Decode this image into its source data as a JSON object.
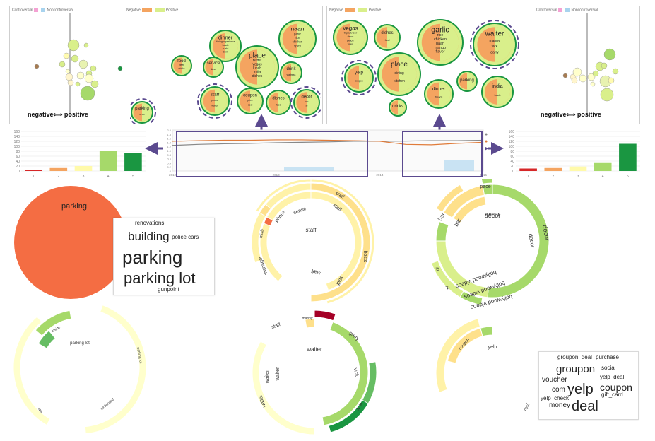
{
  "left_scatter": {
    "legend": [
      "Controversial",
      "Noncontroversial"
    ],
    "axis_label": "negative⟺ positive"
  },
  "right_scatter": {
    "legend": [
      "Controversial",
      "Noncontroversial"
    ],
    "axis_label": "negative⟺ positive"
  },
  "left_bubbles": {
    "legend": [
      "Negative",
      "Positive"
    ],
    "bubbles": [
      {
        "name": "b-dinner",
        "words": [
          "dinner",
          "diningexperience",
          "lunch",
          "sushi",
          "drink"
        ]
      },
      {
        "name": "b-place",
        "words": [
          "place",
          "buffet",
          "vegas",
          "lunch",
          "india",
          "dishes"
        ]
      },
      {
        "name": "b-naan",
        "words": [
          "naan",
          "garlic",
          "rice",
          "chicken",
          "spicy"
        ]
      },
      {
        "name": "b-small1",
        "words": [
          "food",
          "beer",
          "drinks"
        ]
      },
      {
        "name": "b-small2",
        "words": [
          "service",
          "time"
        ]
      },
      {
        "name": "b-drink",
        "words": [
          "drink",
          "waitress"
        ]
      },
      {
        "name": "b-staff",
        "words": [
          "staff",
          "phone",
          "waiter"
        ]
      },
      {
        "name": "b-coupon",
        "words": [
          "coupon",
          "price",
          "deal"
        ]
      },
      {
        "name": "b-dishes",
        "words": [
          "dishes",
          "food"
        ]
      },
      {
        "name": "b-decor",
        "words": [
          "decor",
          "bar",
          "tv"
        ]
      },
      {
        "name": "b-parking",
        "words": [
          "parking",
          "area"
        ]
      }
    ]
  },
  "right_bubbles": {
    "legend": [
      "Negative",
      "Positive"
    ],
    "bubbles": [
      {
        "name": "rb-vegas",
        "words": [
          "vegas",
          "tripadvisor",
          "drive",
          "place",
          "town"
        ]
      },
      {
        "name": "rb-dishes",
        "words": [
          "dishes",
          "food"
        ]
      },
      {
        "name": "rb-garlic",
        "words": [
          "garlic",
          "rice",
          "chicken",
          "naan",
          "mango",
          "flavor"
        ]
      },
      {
        "name": "rb-waiter",
        "words": [
          "waiter",
          "manny",
          "vick",
          "garry"
        ]
      },
      {
        "name": "rb-yelp",
        "words": [
          "yelp",
          "coupon"
        ]
      },
      {
        "name": "rb-place",
        "words": [
          "place",
          "dining",
          "kitchen"
        ]
      },
      {
        "name": "rb-dinner",
        "words": [
          "dinner",
          "friends"
        ]
      },
      {
        "name": "rb-parking",
        "words": [
          "parking"
        ]
      },
      {
        "name": "rb-india",
        "words": [
          "india",
          "lunch"
        ]
      },
      {
        "name": "rb-drinks",
        "words": [
          "drinks"
        ]
      }
    ]
  },
  "bar_left": {
    "type": "bar",
    "categories": [
      "1",
      "2",
      "3",
      "4",
      "5"
    ],
    "values": [
      5,
      12,
      20,
      82,
      72
    ],
    "ylim": [
      0,
      160
    ],
    "yticks": [
      "0",
      "20",
      "40",
      "60",
      "80",
      "100",
      "120",
      "140",
      "160"
    ],
    "colors": [
      "#d62728",
      "#f4a460",
      "#fffaaa",
      "#a6d96a",
      "#1a9641"
    ]
  },
  "bar_right": {
    "type": "bar",
    "categories": [
      "1",
      "2",
      "3",
      "4",
      "5"
    ],
    "values": [
      10,
      12,
      18,
      35,
      110
    ],
    "ylim": [
      0,
      160
    ],
    "yticks": [
      "0",
      "20",
      "40",
      "60",
      "80",
      "100",
      "120",
      "140",
      "160"
    ],
    "colors": [
      "#d62728",
      "#f4a460",
      "#fffaaa",
      "#a6d96a",
      "#1a9641"
    ]
  },
  "timeline": {
    "type": "line",
    "years": [
      "2012",
      "2013",
      "2014",
      "2015"
    ],
    "yticks": [
      "0",
      "0.2",
      "0.4",
      "0.6",
      "0.8",
      "1.0",
      "1.2",
      "1.4",
      "1.6",
      "1.8",
      "2.0"
    ],
    "ylim": [
      0,
      2.0
    ],
    "series": [
      {
        "color": "#888888",
        "values": [
          1.25,
          1.3,
          1.33,
          1.35,
          1.38,
          1.4,
          1.42,
          1.45,
          1.45,
          1.46,
          1.48,
          1.48,
          1.5
        ]
      },
      {
        "color": "#e07b39",
        "values": [
          1.45,
          1.48,
          1.5,
          1.5,
          1.52,
          1.52,
          1.5,
          1.48,
          1.45,
          1.3,
          1.28,
          1.35,
          1.4
        ]
      }
    ],
    "legend_symbols": [
      "●",
      "●",
      "▶"
    ]
  },
  "wordcloud_parking": {
    "words": [
      {
        "t": "renovations",
        "s": 8
      },
      {
        "t": "building",
        "s": 17
      },
      {
        "t": "police cars",
        "s": 8
      },
      {
        "t": "parking",
        "s": 26
      },
      {
        "t": "parking lot",
        "s": 22
      },
      {
        "t": "gunpoint",
        "s": 8
      }
    ]
  },
  "wordcloud_yelp": {
    "words": [
      {
        "t": "groupon_deal",
        "s": 8
      },
      {
        "t": "purchase",
        "s": 8
      },
      {
        "t": "groupon",
        "s": 15
      },
      {
        "t": "social",
        "s": 8
      },
      {
        "t": "voucher",
        "s": 10
      },
      {
        "t": "yelp_deal",
        "s": 8
      },
      {
        "t": "com",
        "s": 10
      },
      {
        "t": "yelp",
        "s": 20
      },
      {
        "t": "coupon",
        "s": 14
      },
      {
        "t": "yelp_check",
        "s": 8
      },
      {
        "t": "gift_card",
        "s": 8
      },
      {
        "t": "money",
        "s": 10
      },
      {
        "t": "deal",
        "s": 20
      }
    ]
  },
  "sunbursts": {
    "parking": {
      "center": "parking"
    },
    "staff": {
      "center": "staff",
      "labels": [
        "phone",
        "sense",
        "staff",
        "staff",
        "staff",
        "hosts",
        "staff",
        "staff",
        "staff",
        "manager",
        "misb"
      ]
    },
    "decor": {
      "center": "decor",
      "labels": [
        "pace",
        "bar",
        "bar",
        "decor",
        "decor",
        "decor",
        "bollywood videos",
        "bollywood videos",
        "bollywood videos",
        "tv",
        "tv"
      ]
    },
    "parkinglot": {
      "center": "parking lot",
      "labels": [
        "inside",
        "parking lot",
        "lot flooded",
        "lots"
      ]
    },
    "waiter": {
      "center": "waiter",
      "labels": [
        "staff",
        "garry",
        "vick",
        "vick",
        "waiter",
        "waiter",
        "waiter",
        "manny"
      ]
    },
    "yelp": {
      "center": "yelp",
      "labels": [
        "coupon",
        "yelp"
      ]
    }
  }
}
